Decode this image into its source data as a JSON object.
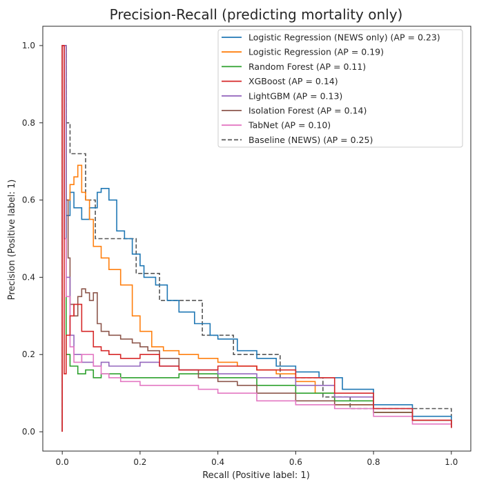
{
  "chart_data": {
    "type": "line",
    "title": "Precision-Recall (predicting mortality only)",
    "xlabel": "Recall (Positive label: 1)",
    "ylabel": "Precision (Positive label: 1)",
    "xlim": [
      -0.05,
      1.05
    ],
    "ylim": [
      -0.05,
      1.05
    ],
    "xticks": [
      0.0,
      0.2,
      0.4,
      0.6,
      0.8,
      1.0
    ],
    "xtick_labels": [
      "0.0",
      "0.2",
      "0.4",
      "0.6",
      "0.8",
      "1.0"
    ],
    "yticks": [
      0.0,
      0.2,
      0.4,
      0.6,
      0.8,
      1.0
    ],
    "ytick_labels": [
      "0.0",
      "0.2",
      "0.4",
      "0.6",
      "0.8",
      "1.0"
    ],
    "grid": false,
    "legend_position": "top-right",
    "series": [
      {
        "name": "Logistic Regression (NEWS only) (AP = 0.23)",
        "color": "#1f77b4",
        "style": "solid",
        "x": [
          0.0,
          0.0,
          0.005,
          0.005,
          0.01,
          0.01,
          0.02,
          0.03,
          0.05,
          0.07,
          0.09,
          0.1,
          0.12,
          0.14,
          0.16,
          0.18,
          0.2,
          0.21,
          0.24,
          0.27,
          0.3,
          0.34,
          0.38,
          0.4,
          0.45,
          0.5,
          0.55,
          0.6,
          0.66,
          0.72,
          0.8,
          0.9,
          1.0
        ],
        "y": [
          0.0,
          1.0,
          1.0,
          0.5,
          0.5,
          0.56,
          0.62,
          0.58,
          0.55,
          0.58,
          0.62,
          0.63,
          0.6,
          0.52,
          0.5,
          0.46,
          0.43,
          0.4,
          0.38,
          0.34,
          0.31,
          0.28,
          0.25,
          0.24,
          0.21,
          0.19,
          0.17,
          0.155,
          0.14,
          0.11,
          0.07,
          0.04,
          0.01
        ]
      },
      {
        "name": "Logistic Regression (AP = 0.19)",
        "color": "#ff7f0e",
        "style": "solid",
        "x": [
          0.0,
          0.0,
          0.01,
          0.01,
          0.02,
          0.03,
          0.04,
          0.05,
          0.06,
          0.07,
          0.08,
          0.1,
          0.12,
          0.15,
          0.18,
          0.2,
          0.23,
          0.26,
          0.3,
          0.35,
          0.4,
          0.45,
          0.5,
          0.55,
          0.6,
          0.65,
          0.7,
          0.8,
          0.9,
          1.0
        ],
        "y": [
          0.0,
          1.0,
          1.0,
          0.6,
          0.64,
          0.66,
          0.69,
          0.62,
          0.6,
          0.55,
          0.48,
          0.45,
          0.42,
          0.38,
          0.3,
          0.26,
          0.22,
          0.21,
          0.2,
          0.19,
          0.18,
          0.17,
          0.16,
          0.15,
          0.13,
          0.1,
          0.07,
          0.05,
          0.03,
          0.01
        ]
      },
      {
        "name": "Random Forest (AP = 0.11)",
        "color": "#2ca02c",
        "style": "solid",
        "x": [
          0.0,
          0.0,
          0.005,
          0.01,
          0.01,
          0.02,
          0.04,
          0.06,
          0.08,
          0.1,
          0.15,
          0.2,
          0.25,
          0.3,
          0.35,
          0.4,
          0.5,
          0.6,
          0.7,
          0.8,
          0.9,
          1.0
        ],
        "y": [
          0.0,
          1.0,
          1.0,
          0.33,
          0.2,
          0.17,
          0.15,
          0.16,
          0.14,
          0.15,
          0.14,
          0.14,
          0.14,
          0.15,
          0.15,
          0.14,
          0.12,
          0.1,
          0.08,
          0.05,
          0.03,
          0.01
        ]
      },
      {
        "name": "XGBoost (AP = 0.14)",
        "color": "#d62728",
        "style": "solid",
        "x": [
          0.0,
          0.0,
          0.005,
          0.005,
          0.01,
          0.02,
          0.03,
          0.05,
          0.08,
          0.1,
          0.12,
          0.15,
          0.2,
          0.25,
          0.3,
          0.35,
          0.4,
          0.5,
          0.6,
          0.7,
          0.8,
          0.9,
          1.0
        ],
        "y": [
          0.0,
          1.0,
          1.0,
          0.15,
          0.25,
          0.3,
          0.33,
          0.26,
          0.22,
          0.21,
          0.2,
          0.19,
          0.2,
          0.17,
          0.16,
          0.16,
          0.17,
          0.16,
          0.14,
          0.1,
          0.06,
          0.03,
          0.01
        ]
      },
      {
        "name": "LightGBM (AP = 0.13)",
        "color": "#9467bd",
        "style": "solid",
        "x": [
          0.0,
          0.0,
          0.005,
          0.01,
          0.02,
          0.03,
          0.05,
          0.08,
          0.1,
          0.12,
          0.15,
          0.2,
          0.25,
          0.3,
          0.4,
          0.5,
          0.6,
          0.7,
          0.8,
          0.9,
          1.0
        ],
        "y": [
          0.0,
          1.0,
          1.0,
          0.4,
          0.25,
          0.2,
          0.18,
          0.17,
          0.18,
          0.17,
          0.17,
          0.18,
          0.17,
          0.16,
          0.15,
          0.14,
          0.12,
          0.09,
          0.06,
          0.03,
          0.01
        ]
      },
      {
        "name": "Isolation Forest (AP = 0.14)",
        "color": "#8c564b",
        "style": "solid",
        "x": [
          0.0,
          0.0,
          0.005,
          0.01,
          0.01,
          0.015,
          0.02,
          0.03,
          0.04,
          0.05,
          0.06,
          0.07,
          0.08,
          0.09,
          0.1,
          0.12,
          0.15,
          0.18,
          0.2,
          0.22,
          0.25,
          0.3,
          0.35,
          0.4,
          0.45,
          0.5,
          0.6,
          0.7,
          0.8,
          0.9,
          1.0
        ],
        "y": [
          0.0,
          1.0,
          1.0,
          0.8,
          0.6,
          0.45,
          0.33,
          0.3,
          0.35,
          0.37,
          0.36,
          0.34,
          0.36,
          0.28,
          0.26,
          0.25,
          0.24,
          0.23,
          0.22,
          0.21,
          0.19,
          0.16,
          0.14,
          0.13,
          0.12,
          0.1,
          0.08,
          0.07,
          0.05,
          0.03,
          0.01
        ]
      },
      {
        "name": "TabNet (AP = 0.10)",
        "color": "#e377c2",
        "style": "solid",
        "x": [
          0.0,
          0.0,
          0.005,
          0.005,
          0.01,
          0.02,
          0.03,
          0.05,
          0.08,
          0.1,
          0.12,
          0.15,
          0.2,
          0.25,
          0.3,
          0.35,
          0.4,
          0.5,
          0.6,
          0.7,
          0.8,
          0.9,
          1.0
        ],
        "y": [
          0.0,
          1.0,
          1.0,
          0.5,
          0.35,
          0.22,
          0.18,
          0.2,
          0.17,
          0.15,
          0.14,
          0.13,
          0.12,
          0.12,
          0.12,
          0.11,
          0.1,
          0.08,
          0.07,
          0.06,
          0.04,
          0.02,
          0.01
        ]
      },
      {
        "name": "Baseline (NEWS) (AP = 0.25)",
        "color": "#555555",
        "style": "dashed",
        "x": [
          0.0,
          0.0,
          0.01,
          0.01,
          0.02,
          0.02,
          0.06,
          0.06,
          0.085,
          0.085,
          0.19,
          0.19,
          0.25,
          0.25,
          0.36,
          0.36,
          0.44,
          0.44,
          0.56,
          0.56,
          0.67,
          0.67,
          0.74,
          0.74,
          1.0
        ],
        "y": [
          0.0,
          1.0,
          1.0,
          0.8,
          0.8,
          0.72,
          0.72,
          0.6,
          0.6,
          0.5,
          0.5,
          0.41,
          0.41,
          0.34,
          0.34,
          0.25,
          0.25,
          0.2,
          0.2,
          0.14,
          0.14,
          0.09,
          0.09,
          0.06,
          0.01
        ]
      }
    ]
  }
}
